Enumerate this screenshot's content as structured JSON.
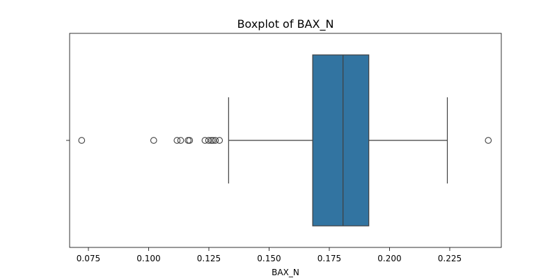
{
  "chart_data": {
    "type": "boxplot",
    "title": "Boxplot of BAX_N",
    "xlabel": "BAX_N",
    "ylabel": "",
    "orientation": "horizontal",
    "xlim": [
      0.0672,
      0.2464
    ],
    "xticks": [
      0.075,
      0.1,
      0.125,
      0.15,
      0.175,
      0.2,
      0.225
    ],
    "xtick_labels": [
      "0.075",
      "0.100",
      "0.125",
      "0.150",
      "0.175",
      "0.200",
      "0.225"
    ],
    "grid": false,
    "box": {
      "whisker_low": 0.1332,
      "q1": 0.1681,
      "median": 0.1807,
      "q3": 0.1914,
      "whisker_high": 0.224
    },
    "outliers": [
      0.0722,
      0.1021,
      0.1118,
      0.1133,
      0.1164,
      0.117,
      0.1234,
      0.1249,
      0.126,
      0.1267,
      0.1277,
      0.1294,
      0.241
    ],
    "colors": {
      "box_fill": "#3274a1",
      "line": "#3f3f3f",
      "outlier_edge": "#3f3f3f"
    }
  }
}
